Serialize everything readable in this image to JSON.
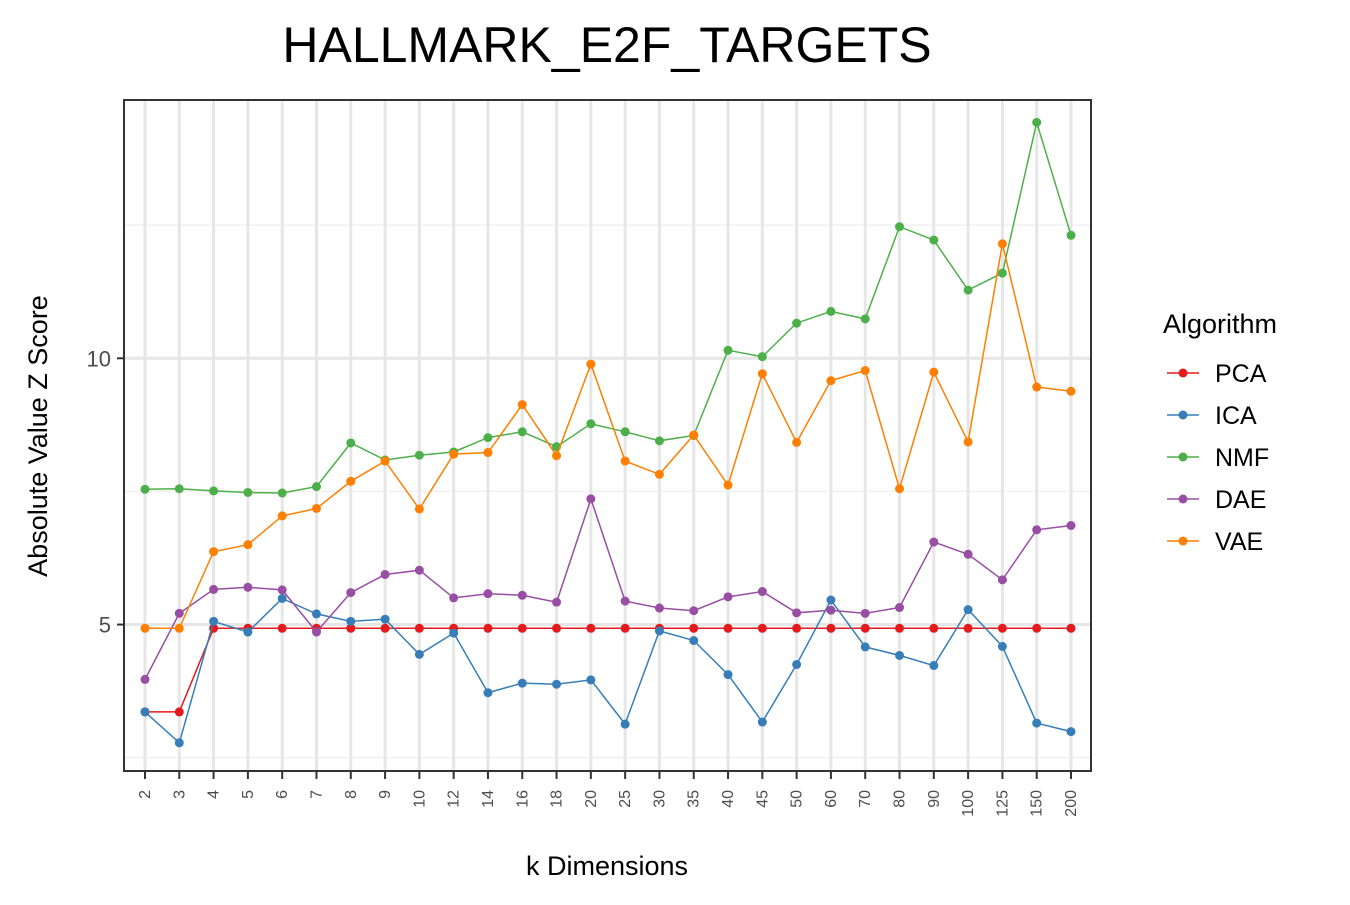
{
  "chart_data": {
    "type": "line",
    "title": "HALLMARK_E2F_TARGETS",
    "xlabel": "k Dimensions",
    "ylabel": "Absolute Value Z Score",
    "ylim": [
      2.25,
      14.85
    ],
    "yticks": [
      5,
      10
    ],
    "y_minor_gridlines": [
      2.5,
      7.5,
      12.5
    ],
    "grid": true,
    "legend_title": "Algorithm",
    "legend_position": "right",
    "categories": [
      "2",
      "3",
      "4",
      "5",
      "6",
      "7",
      "8",
      "9",
      "10",
      "12",
      "14",
      "16",
      "18",
      "20",
      "25",
      "30",
      "35",
      "40",
      "45",
      "50",
      "60",
      "70",
      "80",
      "90",
      "100",
      "125",
      "150",
      "200"
    ],
    "series": [
      {
        "name": "PCA",
        "color": "#e41a1c",
        "values": [
          3.36,
          3.36,
          4.93,
          4.93,
          4.93,
          4.93,
          4.93,
          4.93,
          4.93,
          4.93,
          4.93,
          4.93,
          4.93,
          4.93,
          4.93,
          4.93,
          4.93,
          4.93,
          4.93,
          4.93,
          4.93,
          4.93,
          4.93,
          4.93,
          4.93,
          4.93,
          4.93,
          4.93
        ]
      },
      {
        "name": "ICA",
        "color": "#377eb8",
        "values": [
          3.36,
          2.78,
          5.06,
          4.86,
          5.49,
          5.2,
          5.06,
          5.1,
          4.44,
          4.84,
          3.72,
          3.9,
          3.88,
          3.96,
          3.13,
          4.88,
          4.7,
          4.06,
          3.17,
          4.25,
          5.46,
          4.58,
          4.42,
          4.23,
          5.28,
          4.59,
          3.15,
          2.99
        ]
      },
      {
        "name": "NMF",
        "color": "#4daf4a",
        "values": [
          7.54,
          7.55,
          7.51,
          7.48,
          7.47,
          7.59,
          8.41,
          8.09,
          8.18,
          8.24,
          8.51,
          8.62,
          8.34,
          8.77,
          8.62,
          8.45,
          8.55,
          10.15,
          10.03,
          10.66,
          10.88,
          10.74,
          12.47,
          12.22,
          11.28,
          11.6,
          14.43,
          12.31
        ]
      },
      {
        "name": "DAE",
        "color": "#984ea3",
        "values": [
          3.97,
          5.21,
          5.66,
          5.7,
          5.65,
          4.86,
          5.6,
          5.94,
          6.02,
          5.5,
          5.58,
          5.55,
          5.42,
          7.36,
          5.44,
          5.31,
          5.26,
          5.52,
          5.62,
          5.22,
          5.27,
          5.21,
          5.32,
          6.55,
          6.32,
          5.84,
          6.78,
          6.86
        ]
      },
      {
        "name": "VAE",
        "color": "#ff7f00",
        "values": [
          4.93,
          4.93,
          6.37,
          6.5,
          7.04,
          7.18,
          7.69,
          8.07,
          7.17,
          8.2,
          8.23,
          9.13,
          8.17,
          9.89,
          8.07,
          7.82,
          8.56,
          7.62,
          9.71,
          8.42,
          9.58,
          9.77,
          7.55,
          9.74,
          8.43,
          12.15,
          9.46,
          9.38
        ]
      }
    ]
  }
}
